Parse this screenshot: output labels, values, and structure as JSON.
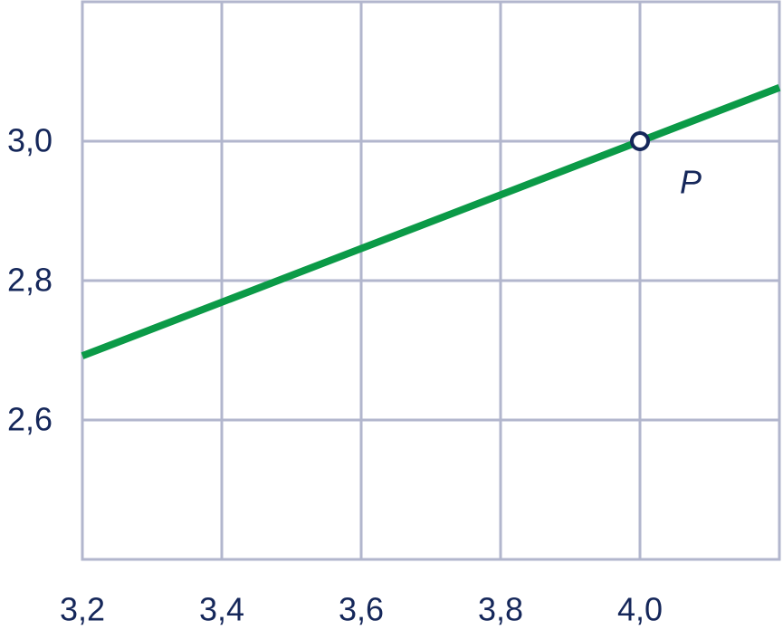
{
  "chart_data": {
    "type": "line",
    "x": [
      3.2,
      4.0,
      4.2
    ],
    "series": [
      {
        "color": "#0b9a47",
        "values": [
          2.692,
          3.0,
          3.077
        ]
      }
    ],
    "xlim": [
      3.2,
      4.2
    ],
    "xticks": [
      {
        "value": 3.2,
        "label": "3,2"
      },
      {
        "value": 3.4,
        "label": "3,4"
      },
      {
        "value": 3.6,
        "label": "3,6"
      },
      {
        "value": 3.8,
        "label": "3,8"
      },
      {
        "value": 4.0,
        "label": "4,0"
      }
    ],
    "ylim": [
      2.4,
      3.2
    ],
    "yticks": [
      {
        "value": 2.6,
        "label": "2,6"
      },
      {
        "value": 2.8,
        "label": "2,8"
      },
      {
        "value": 3.0,
        "label": "3,0"
      }
    ],
    "grid": true,
    "points": [
      {
        "label": "P",
        "x": 4.0,
        "y": 3.0
      }
    ]
  }
}
